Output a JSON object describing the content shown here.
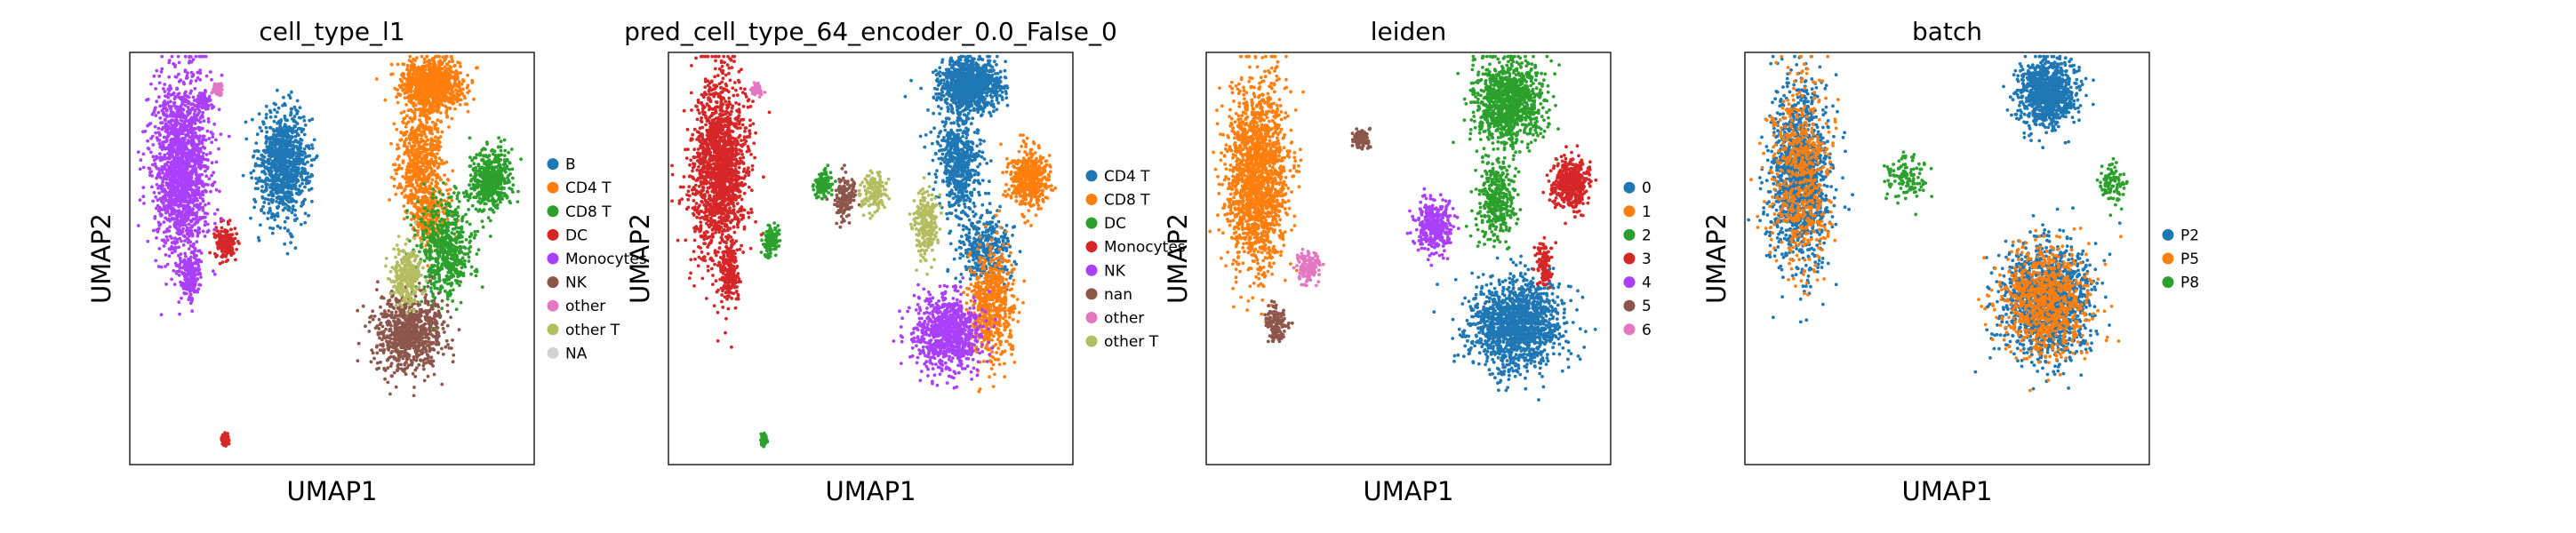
{
  "chart_data": [
    {
      "type": "scatter",
      "title": "cell_type_l1",
      "xlabel": "UMAP1",
      "ylabel": "UMAP2",
      "grid": false,
      "ticks": false,
      "legend": "right",
      "series": [
        {
          "name": "B",
          "color": "#1f77b4",
          "regions": [
            [
              3.2,
              7.3,
              0.7,
              1.3,
              0.4
            ]
          ]
        },
        {
          "name": "CD4 T",
          "color": "#ff7f0e",
          "regions": [
            [
              7.2,
              9.2,
              0.8,
              0.6,
              0.45
            ],
            [
              6.9,
              7.4,
              0.6,
              1.4,
              0.25
            ],
            [
              7.2,
              6.0,
              0.5,
              0.8,
              0.1
            ]
          ]
        },
        {
          "name": "CD8 T",
          "color": "#2ca02c",
          "regions": [
            [
              8.8,
              6.9,
              0.55,
              0.7,
              0.2
            ],
            [
              7.6,
              5.2,
              0.8,
              1.2,
              0.25
            ]
          ]
        },
        {
          "name": "DC",
          "color": "#d62728",
          "regions": [
            [
              1.6,
              5.4,
              0.3,
              0.4,
              0.07
            ],
            [
              1.6,
              0.6,
              0.08,
              0.15,
              0.03
            ]
          ]
        },
        {
          "name": "Monocytes",
          "color": "#aa40fc",
          "regions": [
            [
              0.4,
              7.2,
              0.75,
              2.2,
              0.7
            ],
            [
              0.65,
              4.6,
              0.25,
              0.6,
              0.08
            ],
            [
              1.0,
              8.8,
              0.2,
              0.2,
              0.03
            ]
          ]
        },
        {
          "name": "NK",
          "color": "#8c564b",
          "regions": [
            [
              6.6,
              3.2,
              0.9,
              0.9,
              0.35
            ]
          ]
        },
        {
          "name": "other",
          "color": "#e377c2",
          "regions": [
            [
              1.4,
              9.1,
              0.15,
              0.15,
              0.03
            ]
          ]
        },
        {
          "name": "other T",
          "color": "#b5bd61",
          "regions": [
            [
              6.5,
              4.6,
              0.4,
              0.7,
              0.12
            ]
          ]
        },
        {
          "name": "NA",
          "color": "#d3d3d3",
          "regions": []
        }
      ]
    },
    {
      "type": "scatter",
      "title": "pred_cell_type_64_encoder_0.0_False_0",
      "xlabel": "UMAP1",
      "ylabel": "UMAP2",
      "grid": false,
      "ticks": false,
      "legend": "right",
      "series": [
        {
          "name": "CD4 T",
          "color": "#1f77b4",
          "regions": [
            [
              7.2,
              9.2,
              0.8,
              0.6,
              0.45
            ],
            [
              6.9,
              7.4,
              0.6,
              1.4,
              0.25
            ],
            [
              7.6,
              5.2,
              0.7,
              0.9,
              0.15
            ]
          ]
        },
        {
          "name": "CD8 T",
          "color": "#ff7f0e",
          "regions": [
            [
              8.8,
              6.9,
              0.55,
              0.7,
              0.2
            ],
            [
              7.8,
              3.8,
              0.6,
              1.4,
              0.25
            ]
          ]
        },
        {
          "name": "DC",
          "color": "#2ca02c",
          "regions": [
            [
              1.8,
              5.4,
              0.25,
              0.35,
              0.05
            ],
            [
              3.2,
              6.8,
              0.25,
              0.35,
              0.05
            ],
            [
              1.6,
              0.6,
              0.08,
              0.15,
              0.03
            ]
          ]
        },
        {
          "name": "Monocytes",
          "color": "#d62728",
          "regions": [
            [
              0.4,
              7.2,
              0.75,
              2.2,
              0.7
            ],
            [
              0.65,
              4.6,
              0.25,
              0.6,
              0.08
            ]
          ]
        },
        {
          "name": "NK",
          "color": "#aa40fc",
          "regions": [
            [
              6.6,
              3.2,
              0.9,
              0.9,
              0.35
            ]
          ]
        },
        {
          "name": "nan",
          "color": "#8c564b",
          "regions": [
            [
              3.8,
              6.5,
              0.3,
              0.5,
              0.06
            ]
          ]
        },
        {
          "name": "other",
          "color": "#e377c2",
          "regions": [
            [
              1.4,
              9.1,
              0.15,
              0.15,
              0.03
            ]
          ]
        },
        {
          "name": "other T",
          "color": "#b5bd61",
          "regions": [
            [
              6.0,
              5.8,
              0.35,
              0.8,
              0.1
            ],
            [
              4.6,
              6.6,
              0.35,
              0.5,
              0.06
            ]
          ]
        }
      ]
    },
    {
      "type": "scatter",
      "title": "leiden",
      "xlabel": "UMAP1",
      "ylabel": "UMAP2",
      "grid": false,
      "ticks": false,
      "legend": "right",
      "series": [
        {
          "name": "0",
          "color": "#1f77b4",
          "regions": [
            [
              7.4,
              3.4,
              1.3,
              1.1,
              0.6
            ]
          ]
        },
        {
          "name": "1",
          "color": "#ff7f0e",
          "regions": [
            [
              0.4,
              7.0,
              0.8,
              2.3,
              0.7
            ]
          ]
        },
        {
          "name": "2",
          "color": "#2ca02c",
          "regions": [
            [
              7.2,
              8.8,
              0.9,
              1.0,
              0.45
            ],
            [
              6.9,
              6.4,
              0.5,
              1.0,
              0.15
            ]
          ]
        },
        {
          "name": "3",
          "color": "#d62728",
          "regions": [
            [
              8.9,
              6.8,
              0.5,
              0.6,
              0.18
            ],
            [
              8.2,
              4.8,
              0.2,
              0.6,
              0.05
            ]
          ]
        },
        {
          "name": "4",
          "color": "#aa40fc",
          "regions": [
            [
              5.2,
              5.8,
              0.5,
              0.6,
              0.15
            ]
          ]
        },
        {
          "name": "5",
          "color": "#8c564b",
          "regions": [
            [
              0.9,
              3.4,
              0.3,
              0.4,
              0.06
            ],
            [
              3.2,
              7.9,
              0.25,
              0.25,
              0.04
            ]
          ]
        },
        {
          "name": "6",
          "color": "#e377c2",
          "regions": [
            [
              1.8,
              4.8,
              0.3,
              0.4,
              0.06
            ]
          ]
        }
      ]
    },
    {
      "type": "scatter",
      "title": "batch",
      "xlabel": "UMAP1",
      "ylabel": "UMAP2",
      "grid": false,
      "ticks": false,
      "legend": "right",
      "series": [
        {
          "name": "P2",
          "color": "#1f77b4",
          "regions": [
            [
              0.5,
              7.0,
              0.8,
              2.2,
              0.55
            ],
            [
              7.2,
              9.0,
              0.8,
              0.8,
              0.4
            ],
            [
              7.2,
              4.0,
              1.2,
              1.3,
              0.6
            ]
          ]
        },
        {
          "name": "P5",
          "color": "#ff7f0e",
          "regions": [
            [
              0.5,
              7.0,
              0.8,
              2.2,
              0.25
            ],
            [
              7.2,
              4.0,
              1.2,
              1.3,
              0.35
            ]
          ]
        },
        {
          "name": "P8",
          "color": "#2ca02c",
          "regions": [
            [
              3.4,
              7.0,
              0.5,
              0.6,
              0.05
            ],
            [
              9.0,
              6.8,
              0.4,
              0.5,
              0.04
            ]
          ]
        }
      ]
    }
  ]
}
